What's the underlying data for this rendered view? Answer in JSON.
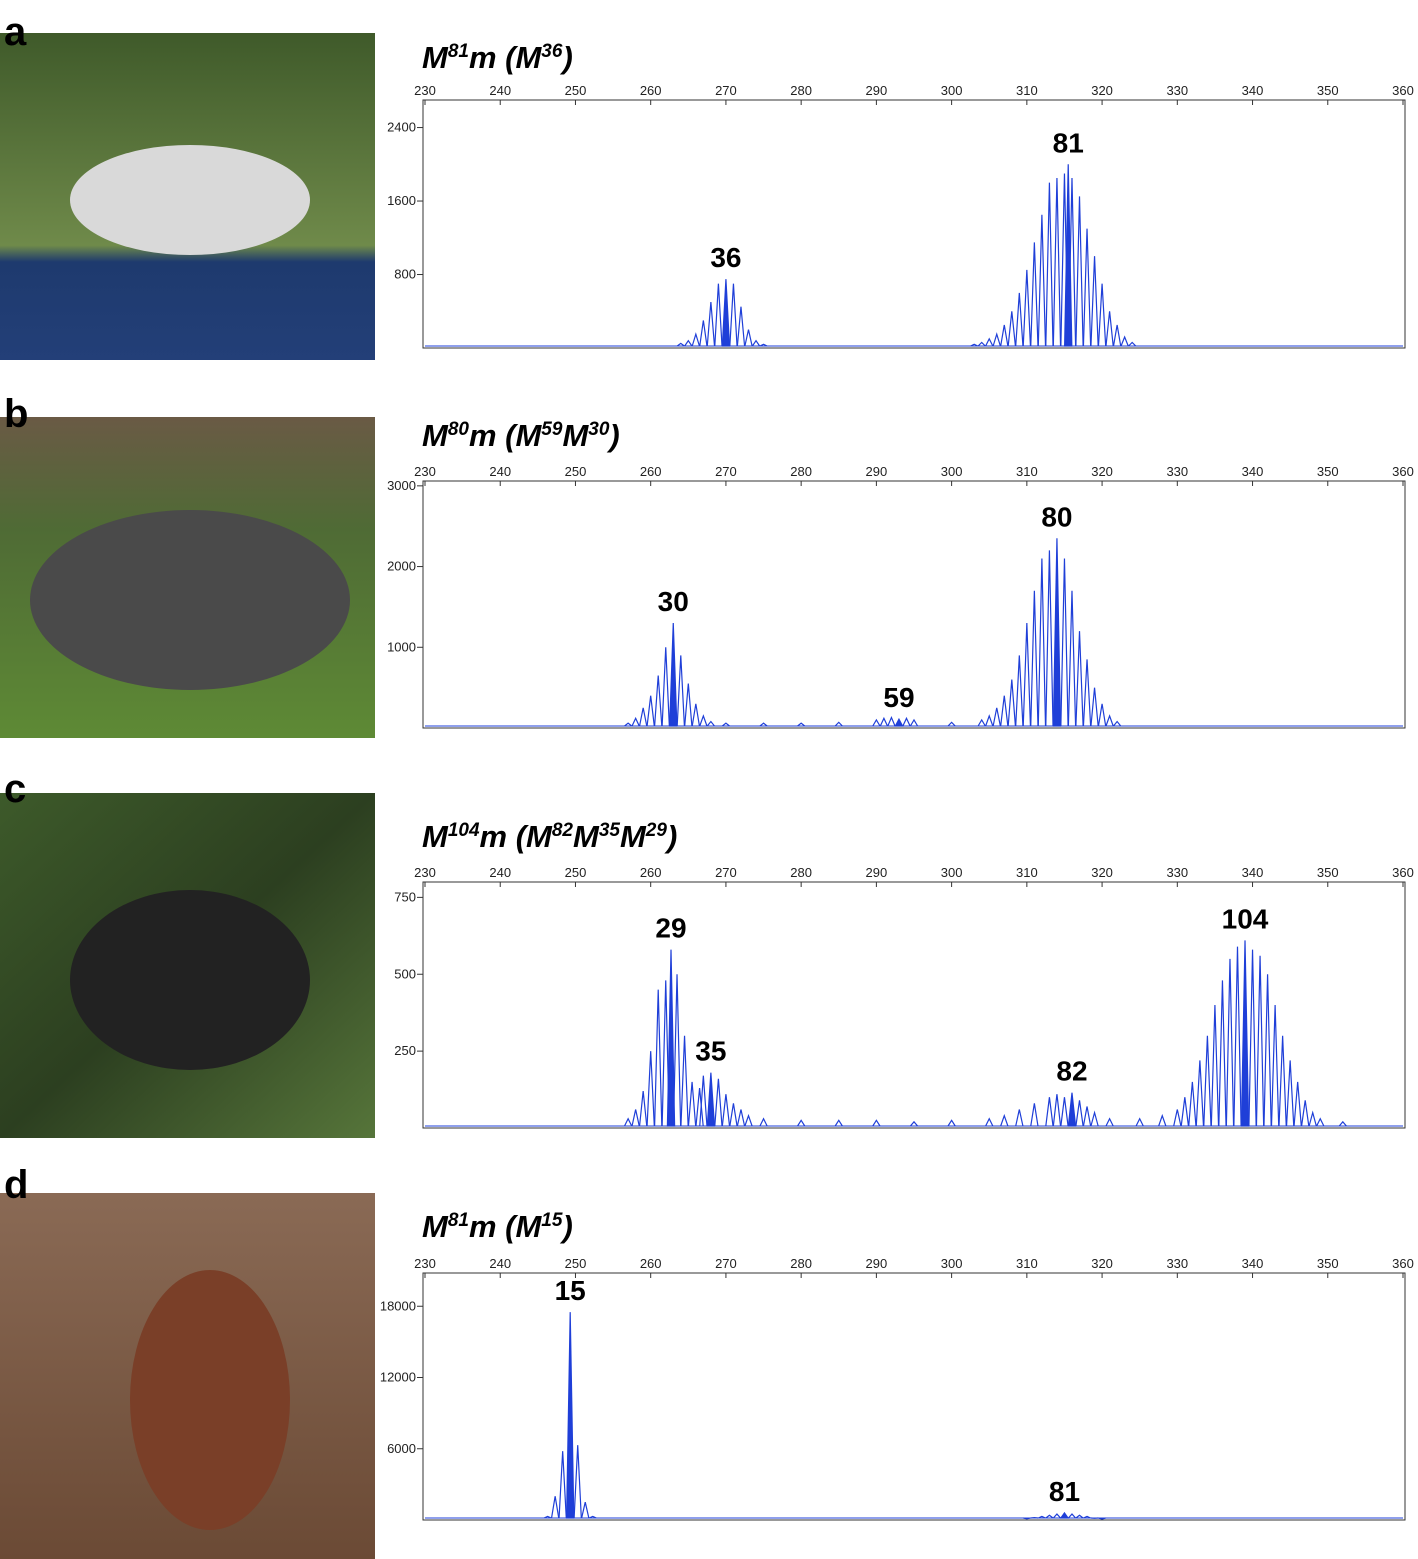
{
  "chart_data": [
    {
      "panel": "a",
      "type": "line",
      "title": [
        "M",
        "81",
        "m (M",
        "36",
        ")"
      ],
      "color": "#1f3fd8",
      "xlim": [
        230,
        360
      ],
      "xticks": [
        230,
        240,
        250,
        260,
        270,
        280,
        290,
        300,
        310,
        320,
        330,
        340,
        350,
        360
      ],
      "ylim": [
        0,
        2700
      ],
      "yticks": [
        800,
        1600,
        2400
      ],
      "x": [
        264,
        265,
        266,
        267,
        268,
        269,
        271,
        272,
        273,
        274,
        275,
        303,
        304,
        305,
        306,
        307,
        308,
        309,
        310,
        311,
        312,
        313,
        314,
        315,
        316,
        317,
        318,
        319,
        320,
        321,
        322,
        323,
        324
      ],
      "values": [
        50,
        80,
        150,
        300,
        500,
        700,
        700,
        450,
        200,
        80,
        40,
        40,
        60,
        100,
        150,
        250,
        400,
        600,
        850,
        1150,
        1450,
        1800,
        1850,
        1900,
        1850,
        1650,
        1300,
        1000,
        700,
        400,
        250,
        120,
        60
      ],
      "annotations": [
        {
          "text": "36",
          "x": 270,
          "y": 750
        },
        {
          "text": "81",
          "x": 315.5,
          "y": 2000
        }
      ]
    },
    {
      "panel": "b",
      "type": "line",
      "title": [
        "M",
        "80",
        "m (M",
        "59",
        "M",
        "30",
        ")"
      ],
      "color": "#1f3fd8",
      "xlim": [
        230,
        360
      ],
      "xticks": [
        230,
        240,
        250,
        260,
        270,
        280,
        290,
        300,
        310,
        320,
        330,
        340,
        350,
        360
      ],
      "ylim": [
        0,
        3060
      ],
      "yticks": [
        1000,
        2000,
        3000
      ],
      "x": [
        257,
        258,
        259,
        260,
        261,
        262,
        264,
        265,
        266,
        267,
        268,
        270,
        275,
        280,
        285,
        290,
        291,
        292,
        294,
        295,
        300,
        304,
        305,
        306,
        307,
        308,
        309,
        310,
        311,
        312,
        313,
        315,
        316,
        317,
        318,
        319,
        320,
        321,
        322
      ],
      "values": [
        60,
        120,
        250,
        400,
        650,
        1000,
        900,
        550,
        300,
        150,
        80,
        60,
        60,
        60,
        70,
        100,
        120,
        130,
        120,
        100,
        70,
        100,
        150,
        250,
        400,
        600,
        900,
        1300,
        1700,
        2100,
        2200,
        2100,
        1700,
        1200,
        850,
        500,
        300,
        150,
        80
      ],
      "annotations": [
        {
          "text": "30",
          "x": 263,
          "y": 1300
        },
        {
          "text": "59",
          "x": 293,
          "y": 110
        },
        {
          "text": "80",
          "x": 314,
          "y": 2350
        }
      ]
    },
    {
      "panel": "c",
      "type": "line",
      "title": [
        "M",
        "104",
        "m (M",
        "82",
        "M",
        "35",
        "M",
        "29",
        ")"
      ],
      "color": "#1f3fd8",
      "xlim": [
        230,
        360
      ],
      "xticks": [
        230,
        240,
        250,
        260,
        270,
        280,
        290,
        300,
        310,
        320,
        330,
        340,
        350,
        360
      ],
      "ylim": [
        0,
        800
      ],
      "yticks": [
        250,
        500,
        750
      ],
      "x": [
        257,
        258,
        259,
        260,
        261,
        262,
        263.5,
        264.5,
        265.5,
        266.5,
        267,
        269,
        270,
        271,
        272,
        273,
        275,
        280,
        285,
        290,
        295,
        300,
        305,
        307,
        309,
        311,
        313,
        314,
        315,
        317,
        318,
        319,
        321,
        325,
        328,
        330,
        331,
        332,
        333,
        334,
        335,
        336,
        337,
        338,
        340,
        341,
        342,
        343,
        344,
        345,
        346,
        347,
        348,
        349,
        352
      ],
      "values": [
        30,
        60,
        120,
        250,
        450,
        480,
        500,
        300,
        150,
        130,
        170,
        160,
        110,
        80,
        60,
        40,
        30,
        25,
        25,
        25,
        20,
        25,
        30,
        40,
        60,
        80,
        100,
        110,
        100,
        90,
        70,
        50,
        30,
        30,
        40,
        60,
        100,
        150,
        220,
        300,
        400,
        480,
        550,
        590,
        580,
        560,
        500,
        400,
        300,
        220,
        150,
        90,
        50,
        30,
        20
      ],
      "annotations": [
        {
          "text": "29",
          "x": 262.7,
          "y": 580
        },
        {
          "text": "35",
          "x": 268,
          "y": 180
        },
        {
          "text": "82",
          "x": 316,
          "y": 115
        },
        {
          "text": "104",
          "x": 339,
          "y": 610
        }
      ]
    },
    {
      "panel": "d",
      "type": "line",
      "title": [
        "M",
        "81",
        "m (M",
        "15",
        ")"
      ],
      "color": "#1f3fd8",
      "xlim": [
        230,
        360
      ],
      "xticks": [
        230,
        240,
        250,
        260,
        270,
        280,
        290,
        300,
        310,
        320,
        330,
        340,
        350,
        360
      ],
      "ylim": [
        0,
        20800
      ],
      "yticks": [
        6000,
        12000,
        18000
      ],
      "x": [
        246.3,
        247.3,
        248.3,
        250.3,
        251.3,
        252.3,
        310,
        311,
        312,
        313,
        314,
        316,
        317,
        318,
        319,
        320
      ],
      "values": [
        300,
        2000,
        5800,
        6300,
        1500,
        300,
        100,
        200,
        300,
        400,
        500,
        500,
        400,
        300,
        150,
        80
      ],
      "annotations": [
        {
          "text": "15",
          "x": 249.3,
          "y": 17500
        },
        {
          "text": "81",
          "x": 315,
          "y": 600
        }
      ]
    }
  ]
}
